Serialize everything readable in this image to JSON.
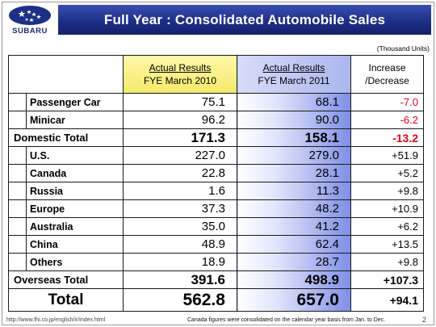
{
  "header": {
    "logo_text": "SUBARU",
    "title": "Full Year : Consolidated Automobile Sales",
    "units": "(Thousand Units)"
  },
  "table": {
    "col_2010": {
      "line1": "Actual Results",
      "line2": "FYE March 2010"
    },
    "col_2011": {
      "line1": "Actual Results",
      "line2": "FYE March 2011"
    },
    "col_change": {
      "line1": "Increase",
      "line2": "/Decrease"
    },
    "domestic": [
      {
        "label": "Passenger Car",
        "fy2010": "75.1",
        "fy2011": "68.1",
        "change": "-7.0"
      },
      {
        "label": "Minicar",
        "fy2010": "96.2",
        "fy2011": "90.0",
        "change": "-6.2"
      }
    ],
    "domestic_total": {
      "label": "Domestic Total",
      "fy2010": "171.3",
      "fy2011": "158.1",
      "change": "-13.2"
    },
    "overseas": [
      {
        "label": "U.S.",
        "fy2010": "227.0",
        "fy2011": "279.0",
        "change": "+51.9"
      },
      {
        "label": "Canada",
        "fy2010": "22.8",
        "fy2011": "28.1",
        "change": "+5.2"
      },
      {
        "label": "Russia",
        "fy2010": "1.6",
        "fy2011": "11.3",
        "change": "+9.8"
      },
      {
        "label": "Europe",
        "fy2010": "37.3",
        "fy2011": "48.2",
        "change": "+10.9"
      },
      {
        "label": "Australia",
        "fy2010": "35.0",
        "fy2011": "41.2",
        "change": "+6.2"
      },
      {
        "label": "China",
        "fy2010": "48.9",
        "fy2011": "62.4",
        "change": "+13.5"
      },
      {
        "label": "Others",
        "fy2010": "18.9",
        "fy2011": "28.7",
        "change": "+9.8"
      }
    ],
    "overseas_total": {
      "label": "Overseas Total",
      "fy2010": "391.6",
      "fy2011": "498.9",
      "change": "+107.3"
    },
    "total": {
      "label": "Total",
      "fy2010": "562.8",
      "fy2011": "657.0",
      "change": "+94.1"
    }
  },
  "footer": {
    "url": "http://www.fhi.co.jp/english/ir/index.html",
    "note": "Canada figures were consolidated on the calendar year basis from Jan. to Dec.",
    "page": "2"
  },
  "colors": {
    "title_bar": "#1d2f86",
    "negative": "#e4001b",
    "col_2010_bg": "#f5e96a",
    "col_2011_bg": "#7e8fe6"
  }
}
